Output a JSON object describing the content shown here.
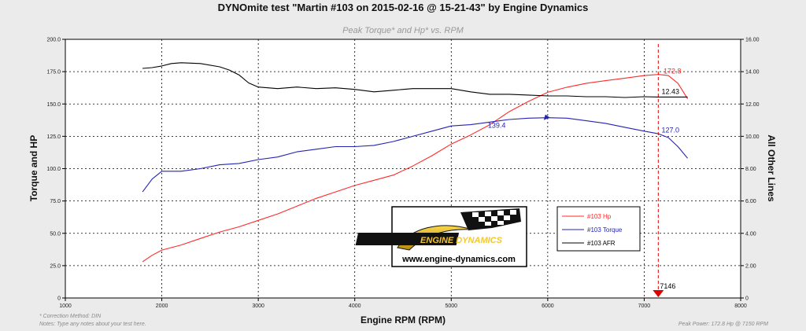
{
  "chart_data": {
    "type": "line",
    "title": "DYNOmite test \"Martin #103 on 2015-02-16 @ 15-21-43\" by Engine Dynamics",
    "subtitle": "Peak Torque* and Hp* vs. RPM",
    "xlabel": "Engine RPM (RPM)",
    "ylabel": "Torque and HP",
    "y2label": "All Other Lines",
    "xlim": [
      1000,
      8000
    ],
    "ylim": [
      0,
      200
    ],
    "y2lim": [
      0,
      16
    ],
    "x_ticks": [
      "1000",
      "2000",
      "3000",
      "4000",
      "5000",
      "6000",
      "7000",
      "8000"
    ],
    "y_ticks": [
      "0",
      "25.0",
      "50.0",
      "75.0",
      "100.0",
      "125.0",
      "150.0",
      "175.0",
      "200.0"
    ],
    "y2_ticks": [
      "0",
      "2.00",
      "4.00",
      "6.00",
      "8.00",
      "10.00",
      "12.00",
      "14.00",
      "16.00"
    ],
    "grid": true,
    "series": [
      {
        "name": "#103 Hp",
        "color": "#ff2a2a",
        "axis": "left",
        "x": [
          1800,
          1900,
          2000,
          2200,
          2400,
          2600,
          2800,
          3000,
          3200,
          3400,
          3600,
          3800,
          4000,
          4200,
          4400,
          4600,
          4800,
          5000,
          5200,
          5400,
          5600,
          5800,
          6000,
          6200,
          6400,
          6600,
          6800,
          7000,
          7150,
          7250,
          7350,
          7450
        ],
        "values": [
          28,
          33,
          37,
          41,
          46,
          51,
          55,
          60,
          65,
          71,
          77,
          82,
          87,
          91,
          95,
          102,
          110,
          119,
          126,
          134,
          144,
          152,
          159,
          163,
          166,
          168,
          170,
          172,
          172.8,
          172,
          166,
          154
        ]
      },
      {
        "name": "#103 Torque",
        "color": "#2323b4",
        "axis": "left",
        "x": [
          1800,
          1900,
          2000,
          2200,
          2400,
          2600,
          2800,
          3000,
          3200,
          3400,
          3600,
          3800,
          4000,
          4200,
          4400,
          4600,
          4800,
          5000,
          5200,
          5400,
          5600,
          5800,
          6000,
          6200,
          6400,
          6600,
          6800,
          7000,
          7146,
          7250,
          7350,
          7450
        ],
        "values": [
          82,
          92,
          98,
          98,
          100,
          103,
          104,
          107,
          109,
          113,
          115,
          117,
          117,
          118,
          121,
          125,
          129,
          133,
          134,
          136,
          138,
          139,
          139.4,
          139,
          137,
          135,
          132,
          129,
          127,
          124,
          117,
          108
        ]
      },
      {
        "name": "#103 AFR",
        "color": "#000000",
        "axis": "right",
        "x": [
          1800,
          1900,
          2000,
          2100,
          2200,
          2400,
          2600,
          2700,
          2800,
          2900,
          3000,
          3200,
          3400,
          3600,
          3800,
          4000,
          4200,
          4400,
          4600,
          4800,
          5000,
          5200,
          5400,
          5600,
          5800,
          6000,
          6200,
          6400,
          6600,
          6800,
          7000,
          7146,
          7300,
          7450
        ],
        "values": [
          14.2,
          14.25,
          14.35,
          14.5,
          14.55,
          14.5,
          14.3,
          14.1,
          13.8,
          13.3,
          13.05,
          12.95,
          13.05,
          12.95,
          13.0,
          12.9,
          12.75,
          12.85,
          12.95,
          12.95,
          12.95,
          12.75,
          12.6,
          12.6,
          12.55,
          12.5,
          12.5,
          12.45,
          12.45,
          12.4,
          12.45,
          12.43,
          12.43,
          12.43
        ]
      }
    ],
    "peak_marker": {
      "x": 7146,
      "label": "7146",
      "color": "#e00000"
    },
    "annotations": [
      {
        "text": "172.8",
        "x": 7200,
        "y": 173.5,
        "axis": "left",
        "color": "#ff2a2a"
      },
      {
        "text": "139.4",
        "x": 5380,
        "y": 131.5,
        "axis": "left",
        "color": "#2323b4"
      },
      {
        "text": "12.43",
        "x": 7180,
        "y": 12.62,
        "axis": "right",
        "color": "#000000"
      },
      {
        "text": "127.0",
        "x": 7180,
        "y": 128,
        "axis": "left",
        "color": "#2323b4"
      }
    ],
    "legend_position": "center-right",
    "notes": {
      "correction": "* Correction Method: DIN",
      "notes": "Notes: Type any notes about your test here.",
      "peak": "Peak Power: 172.8 Hp @ 7150 RPM"
    }
  },
  "logo": {
    "brand": "ENGINE DYNAMICS",
    "url": "www.engine-dynamics.com"
  },
  "legend_items": [
    "#103 Hp",
    "#103 Torque",
    "#103 AFR"
  ]
}
